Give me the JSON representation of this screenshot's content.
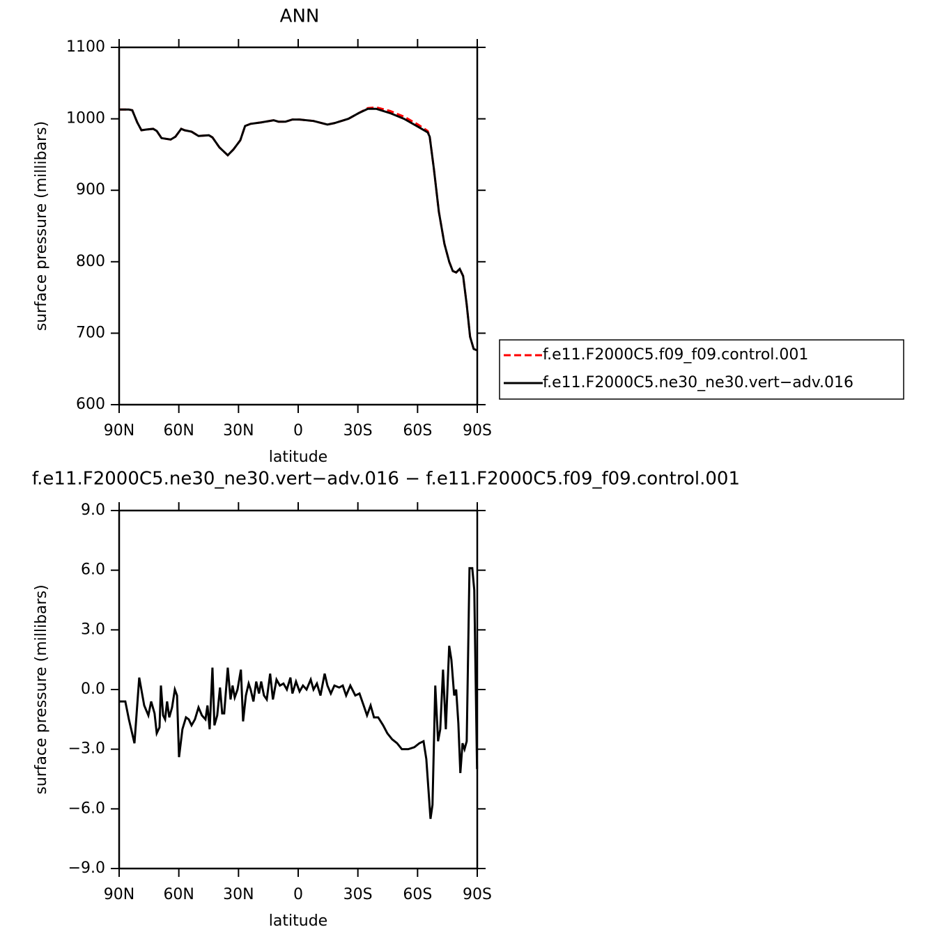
{
  "chart_data": [
    {
      "type": "line",
      "title": "ANN",
      "xlabel": "latitude",
      "ylabel": "surface pressure (millibars)",
      "xlim": [
        90,
        -90
      ],
      "xticks": [
        {
          "value": 90,
          "label": "90N"
        },
        {
          "value": 60,
          "label": "60N"
        },
        {
          "value": 30,
          "label": "30N"
        },
        0,
        {
          "value": -30,
          "label": "30S"
        },
        {
          "value": -60,
          "label": "60S"
        },
        {
          "value": -90,
          "label": "90S"
        }
      ],
      "ylim": [
        600,
        1100
      ],
      "yticks": [
        600,
        700,
        800,
        900,
        1000,
        1100
      ],
      "legend": "right",
      "x": [
        90,
        85.1,
        83.4,
        80.9,
        78.8,
        76.4,
        72.9,
        71.1,
        68.7,
        64.1,
        61.7,
        58.8,
        57.1,
        53.6,
        50.1,
        44.9,
        43.1,
        39.6,
        35.4,
        32.6,
        29.1,
        26.7,
        23.9,
        18.6,
        12.3,
        9.9,
        6.4,
        2.9,
        -0.7,
        -7.7,
        -14.7,
        -18.2,
        -25.2,
        -30.4,
        -35,
        -39.2,
        -46.2,
        -53.2,
        -60.2,
        -65.1,
        -66.1,
        -68.2,
        -70.7,
        -73.5,
        -75.9,
        -77.7,
        -79.4,
        -81.2,
        -82.9,
        -84.7,
        -86.4,
        -88.2,
        -89.9
      ],
      "series": [
        {
          "name": "f.e11.F2000C5.f09_f09.control.001",
          "color": "#ff0000",
          "line_style": "dashed",
          "values": [
            1013,
            1013,
            1012,
            995,
            984,
            985,
            986,
            983,
            973,
            971,
            975,
            986,
            984,
            982,
            976,
            977,
            974,
            960,
            949,
            957,
            970,
            990,
            993,
            995,
            998,
            996,
            996,
            999,
            999,
            997,
            992,
            994,
            1000,
            1008,
            1015,
            1016,
            1011,
            1003,
            992,
            983,
            975,
            930,
            870,
            825,
            800,
            787,
            785,
            790,
            780,
            740,
            695,
            678,
            676
          ]
        },
        {
          "name": "f.e11.F2000C5.ne30_ne30.vert−adv.016",
          "color": "#000000",
          "line_style": "solid",
          "values": [
            1013,
            1013,
            1012,
            995,
            984,
            985,
            986,
            983,
            973,
            971,
            975,
            986,
            984,
            982,
            976,
            977,
            974,
            960,
            949,
            957,
            970,
            990,
            993,
            995,
            998,
            996,
            996,
            999,
            999,
            997,
            992,
            994,
            1000,
            1008,
            1014,
            1014,
            1008,
            1000,
            989,
            981,
            975,
            930,
            870,
            825,
            800,
            787,
            785,
            790,
            780,
            740,
            695,
            678,
            676
          ]
        }
      ]
    },
    {
      "type": "line",
      "title": "f.e11.F2000C5.ne30_ne30.vert−adv.016 − f.e11.F2000C5.f09_f09.control.001",
      "xlabel": "latitude",
      "ylabel": "surface pressure (millibars)",
      "xlim": [
        90,
        -90
      ],
      "xticks": [
        {
          "value": 90,
          "label": "90N"
        },
        {
          "value": 60,
          "label": "60N"
        },
        {
          "value": 30,
          "label": "30N"
        },
        0,
        {
          "value": -30,
          "label": "30S"
        },
        {
          "value": -60,
          "label": "60S"
        },
        {
          "value": -90,
          "label": "90S"
        }
      ],
      "ylim": [
        -9,
        9
      ],
      "yticks": [
        {
          "value": -9,
          "label": "−9.0"
        },
        {
          "value": -6,
          "label": "−6.0"
        },
        {
          "value": -3,
          "label": "−3.0"
        },
        {
          "value": 0,
          "label": "0.0"
        },
        {
          "value": 3,
          "label": "3.0"
        },
        {
          "value": 6,
          "label": "6.0"
        },
        {
          "value": 9,
          "label": "9.0"
        }
      ],
      "x": [
        90,
        86.9,
        85.1,
        82.3,
        79.9,
        77.4,
        75.3,
        73.9,
        72.2,
        71.1,
        69.7,
        69,
        67.9,
        66.9,
        65.9,
        64.8,
        63.4,
        62,
        60.9,
        59.9,
        58.2,
        56.4,
        55,
        53.6,
        51.9,
        50.1,
        48.4,
        46.6,
        45.6,
        44.5,
        43.1,
        42.1,
        40.7,
        39.3,
        38.2,
        37.2,
        35.4,
        34,
        33,
        31.9,
        30.5,
        28.8,
        27.7,
        26.3,
        24.9,
        23.9,
        22.5,
        21.1,
        19.7,
        18.6,
        17.2,
        15.8,
        14.1,
        12.7,
        10.9,
        9.2,
        7.4,
        5.7,
        3.9,
        2.9,
        1.1,
        -0.7,
        -2.4,
        -4.2,
        -6.3,
        -7.7,
        -9.4,
        -11.2,
        -13.3,
        -14.7,
        -16.4,
        -18.2,
        -20.6,
        -22.4,
        -24.1,
        -26.2,
        -28.7,
        -30.8,
        -32.9,
        -34.6,
        -36.4,
        -38.1,
        -40.2,
        -42.7,
        -44.8,
        -47.2,
        -49.7,
        -52.1,
        -55.3,
        -58.4,
        -60.9,
        -63,
        -64.4,
        -66.5,
        -67.5,
        -68.9,
        -70.3,
        -71.4,
        -72.8,
        -74.2,
        -75.9,
        -77,
        -78.4,
        -79.4,
        -80.5,
        -81.5,
        -82.6,
        -83.6,
        -84.7,
        -86.1,
        -87.5,
        -88.5,
        -89.9
      ],
      "series": [
        {
          "name": "f.e11.F2000C5.ne30_ne30.vert−adv.016 − f.e11.F2000C5.f09_f09.control.001",
          "color": "#000000",
          "line_style": "solid",
          "values": [
            -0.6,
            -0.6,
            -1.5,
            -2.7,
            0.6,
            -0.8,
            -1.3,
            -0.6,
            -1.2,
            -2.2,
            -1.9,
            0.2,
            -1.3,
            -1.5,
            -0.6,
            -1.4,
            -0.9,
            0.0,
            -0.3,
            -3.4,
            -2.0,
            -1.4,
            -1.5,
            -1.8,
            -1.5,
            -0.9,
            -1.3,
            -1.5,
            -0.8,
            -2.0,
            1.1,
            -1.8,
            -1.3,
            0.1,
            -1.2,
            -1.2,
            1.1,
            -0.5,
            0.2,
            -0.4,
            0.0,
            1.0,
            -1.6,
            -0.3,
            0.3,
            0.0,
            -0.6,
            0.4,
            -0.2,
            0.4,
            -0.3,
            -0.5,
            0.8,
            -0.5,
            0.5,
            0.2,
            0.3,
            0.0,
            0.6,
            -0.2,
            0.4,
            -0.1,
            0.2,
            0.0,
            0.5,
            0.0,
            0.3,
            -0.3,
            0.8,
            0.2,
            -0.2,
            0.2,
            0.1,
            0.2,
            -0.3,
            0.2,
            -0.3,
            -0.2,
            -0.8,
            -1.3,
            -0.8,
            -1.4,
            -1.4,
            -1.8,
            -2.2,
            -2.5,
            -2.7,
            -3.0,
            -3.0,
            -2.9,
            -2.7,
            -2.6,
            -3.5,
            -6.5,
            -5.8,
            0.2,
            -2.6,
            -2.0,
            1.0,
            -2.0,
            2.2,
            1.5,
            -0.3,
            0.0,
            -1.7,
            -4.2,
            -2.7,
            -3.0,
            -2.6,
            6.1,
            6.1,
            5.0,
            -4.0
          ]
        }
      ]
    }
  ]
}
